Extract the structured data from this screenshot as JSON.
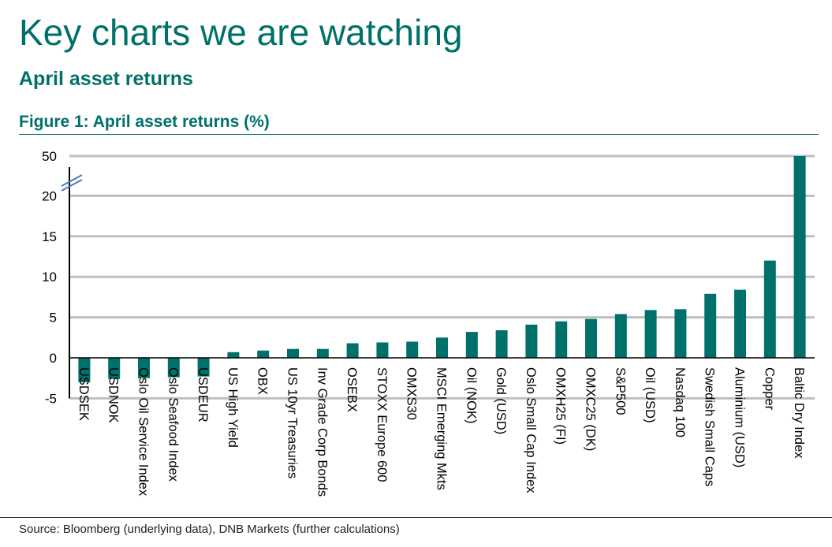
{
  "header": {
    "title": "Key charts we are watching",
    "section": "April asset returns",
    "figure_title": "Figure 1: April asset returns (%)"
  },
  "footer": {
    "source": "Source: Bloomberg (underlying data), DNB Markets (further calculations)"
  },
  "colors": {
    "accent": "#00706b",
    "bar": "#00706b",
    "grid": "#bfbfbf",
    "axis_break": "#4a7bbf"
  },
  "chart_data": {
    "type": "bar",
    "title": "Figure 1: April asset returns (%)",
    "xlabel": "",
    "ylabel": "",
    "ylim": [
      -5,
      25
    ],
    "axis_break": true,
    "yticks": [
      "-5",
      "0",
      "5",
      "10",
      "15",
      "20",
      "50"
    ],
    "grid": true,
    "categories": [
      "USDSEK",
      "USDNOK",
      "Oslo Oil Service Index",
      "Oslo Seafood Index",
      "USDEUR",
      "US High Yield",
      "OBX",
      "US 10yr Treasuries",
      "Inv Grade Corp Bonds",
      "OSEBX",
      "STOXX Europe 600",
      "OMXS30",
      "MSCI Emerging Mkts",
      "Oil (NOK)",
      "Gold (USD)",
      "Oslo Small Cap Index",
      "OMXH25 (FI)",
      "OMXC25 (DK)",
      "S&P500",
      "Oil (USD)",
      "Nasdaq 100",
      "Swedish Small Caps",
      "Aluminium (USD)",
      "Copper",
      "Baltic Dry Index"
    ],
    "values": [
      -3.0,
      -2.6,
      -2.5,
      -2.4,
      -2.3,
      0.7,
      0.9,
      1.1,
      1.1,
      1.8,
      1.9,
      2.0,
      2.5,
      3.2,
      3.4,
      4.1,
      4.5,
      4.8,
      5.4,
      5.9,
      6.0,
      7.9,
      8.4,
      12.0,
      50.0
    ]
  }
}
